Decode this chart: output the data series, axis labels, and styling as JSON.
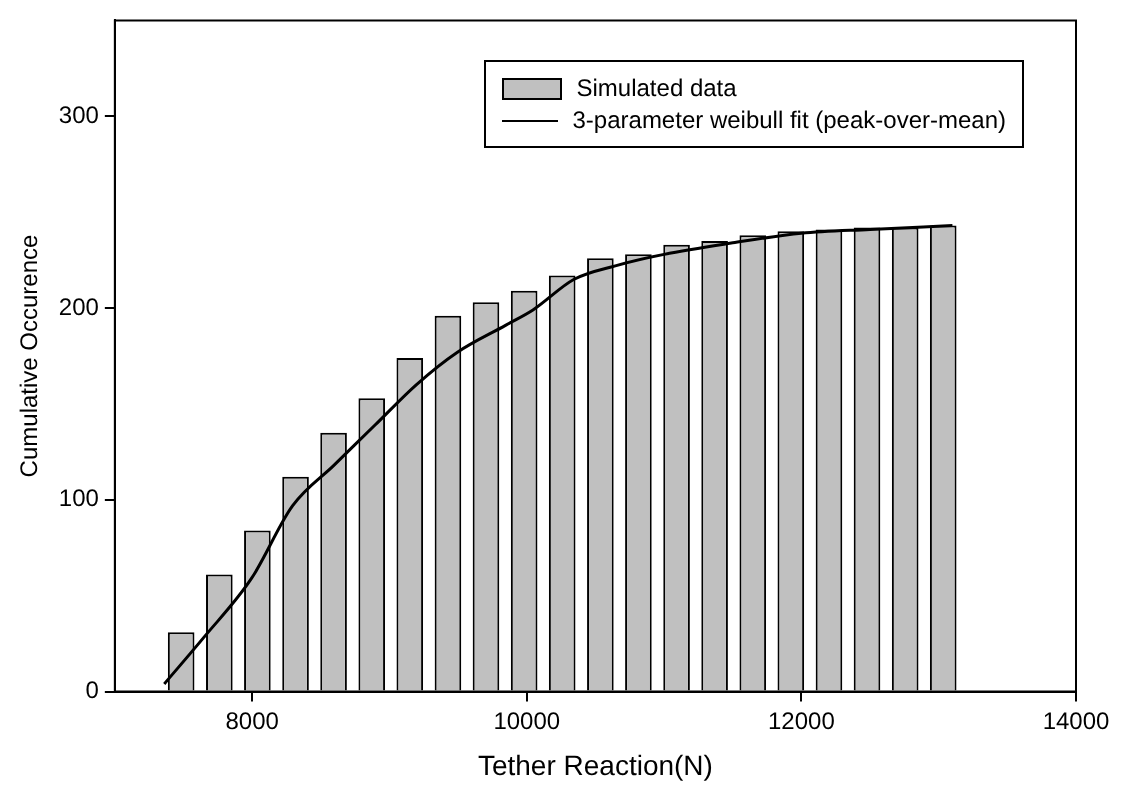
{
  "chart_data": {
    "type": "bar",
    "xlabel": "Tether Reaction(N)",
    "ylabel": "Cumulative Occurence",
    "xlim": [
      7000,
      14000
    ],
    "xticks": [
      8000,
      10000,
      12000,
      14000
    ],
    "ylim": [
      0,
      350
    ],
    "yticks": [
      0,
      100,
      200,
      300
    ],
    "grid": false,
    "legend": "top right",
    "series": [
      {
        "name": "Simulated data",
        "color": "#c0c0c0",
        "x": [
          7483,
          7761,
          8038,
          8316,
          8593,
          8871,
          9148,
          9426,
          9703,
          9981,
          10258,
          10536,
          10813,
          11091,
          11368,
          11646,
          11923,
          12201,
          12478,
          12756,
          13033
        ],
        "values": [
          31,
          61,
          84,
          112,
          135,
          153,
          174,
          196,
          203,
          209,
          217,
          226,
          228,
          233,
          235,
          238,
          240,
          241,
          242,
          242,
          243
        ]
      },
      {
        "name": "3-parameter weibull fit (peak-over-mean)",
        "type": "line",
        "color": "#000000",
        "x": [
          7360,
          7645,
          7995,
          8295,
          8595,
          8895,
          9195,
          9495,
          9845,
          10045,
          10345,
          10645,
          11000,
          11500,
          12000,
          12500,
          13100
        ],
        "values": [
          4,
          28,
          59,
          97,
          118,
          139,
          160,
          177,
          191,
          199,
          215,
          222,
          228,
          234,
          239,
          241,
          243
        ]
      }
    ]
  }
}
